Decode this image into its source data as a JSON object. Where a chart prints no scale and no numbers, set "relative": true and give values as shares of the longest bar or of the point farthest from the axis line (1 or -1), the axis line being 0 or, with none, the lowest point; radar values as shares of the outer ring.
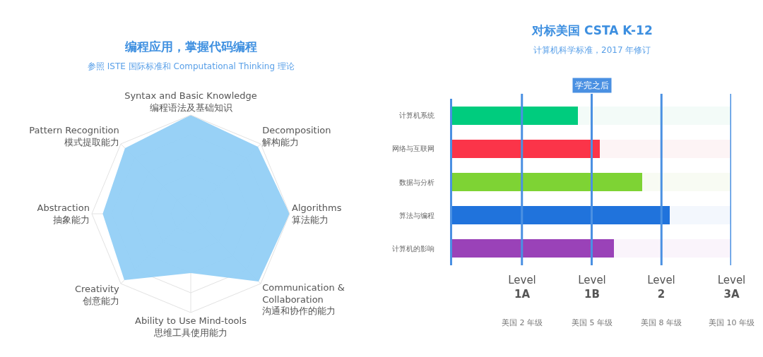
{
  "chart_data": [
    {
      "type": "radar",
      "title": "编程应用，掌握代码编程",
      "subtitle": "参照 ISTE 国际标准和 Computational Thinking 理论",
      "relative": true,
      "grid": true,
      "legend": false,
      "marker": "none",
      "categories": [
        "Syntax and Basic Knowledge\n编程语法及基础知识",
        "Decomposition\n解构能力",
        "Algorithms\n算法能力",
        "Communication &\nCollaboration\n沟通和协作的能力",
        "Ability to Use Mind-tools\n思维工具使用能力",
        "Creativity\n创意能力",
        "Abstraction\n抽象能力",
        "Pattern Recognition\n模式提取能力"
      ],
      "series": [
        {
          "color": "#92cff6",
          "values": [
            1.0,
            0.96,
            1.0,
            0.97,
            0.6,
            0.95,
            0.89,
            0.94
          ]
        }
      ]
    },
    {
      "type": "bar",
      "orientation": "horizontal",
      "title": "对标美国 CSTA K-12",
      "subtitle": "计算机科学标准，2017 年修订",
      "annotations": [
        "学完之后"
      ],
      "relative": true,
      "legend": false,
      "categories": [
        "计算机系统",
        "网络与互联网",
        "数据与分析",
        "算法与编程",
        "计算机的影响"
      ],
      "stacked": true,
      "ref_lines": [
        {
          "axis": "x",
          "value": 0.25,
          "label": "Level\n1A\n美国 2 年级",
          "color": "#4a90e2"
        },
        {
          "axis": "x",
          "value": 0.5,
          "label": "Level\n1B\n美国 5 年级",
          "color": "#4a90e2"
        },
        {
          "axis": "x",
          "value": 0.75,
          "label": "Level\n2\n美国 8 年级",
          "color": "#4a90e2"
        },
        {
          "axis": "x",
          "value": 1,
          "label": "Level\n3A\n美国 10 年级",
          "color": "#4a90e2"
        }
      ],
      "series": [
        {
          "colors": [
            "#00cc7e",
            "#fb3449",
            "#7ed334",
            "#2073dc",
            "#9a42b8"
          ],
          "values": [
            0.45,
            0.53,
            0.68,
            0.78,
            0.58
          ]
        },
        {
          "colors": [
            "#f3fbf8",
            "#fdf4f5",
            "#f8fbf3",
            "#f3f7fd",
            "#faf4fb"
          ],
          "values": [
            0.55,
            0.47,
            0.32,
            0.22,
            0.42
          ]
        }
      ]
    }
  ]
}
